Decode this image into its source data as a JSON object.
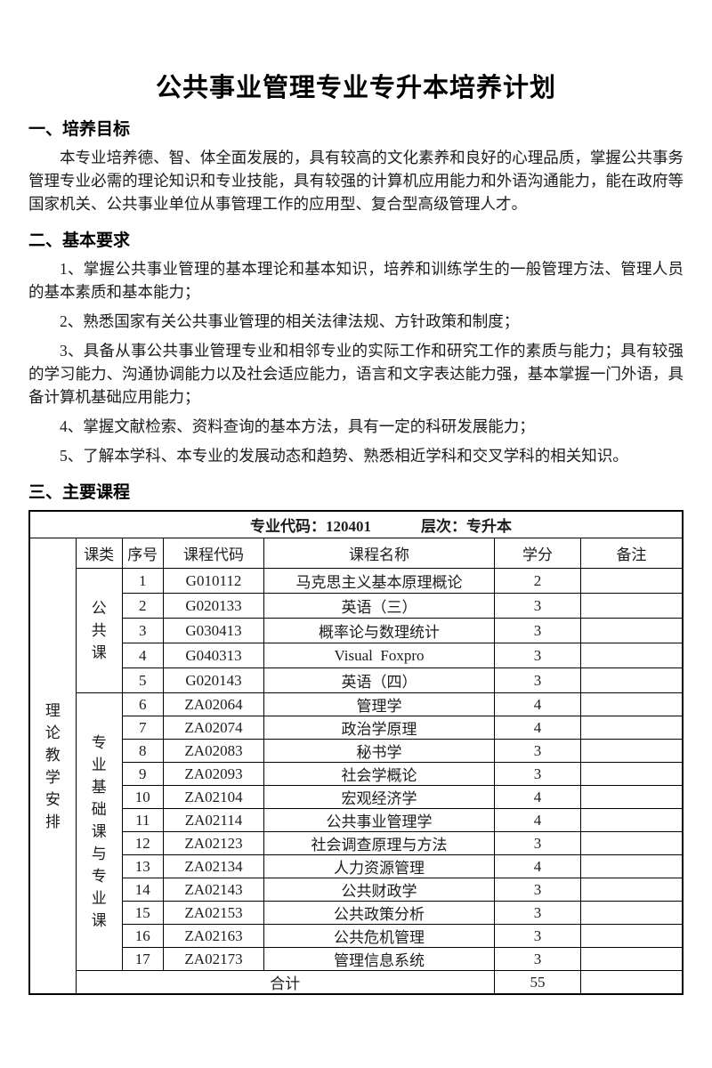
{
  "title": "公共事业管理专业专升本培养计划",
  "sections": [
    {
      "heading": "一、培养目标",
      "paragraphs": [
        "本专业培养德、智、体全面发展的，具有较高的文化素养和良好的心理品质，掌握公共事务管理专业必需的理论知识和专业技能，具有较强的计算机应用能力和外语沟通能力，能在政府等国家机关、公共事业单位从事管理工作的应用型、复合型高级管理人才。"
      ]
    },
    {
      "heading": "二、基本要求",
      "paragraphs": [
        "1、掌握公共事业管理的基本理论和基本知识，培养和训练学生的一般管理方法、管理人员的基本素质和基本能力；",
        "2、熟悉国家有关公共事业管理的相关法律法规、方针政策和制度；",
        "3、具备从事公共事业管理专业和相邻专业的实际工作和研究工作的素质与能力；具有较强的学习能力、沟通协调能力以及社会适应能力，语言和文字表达能力强，基本掌握一门外语，具备计算机基础应用能力；",
        "4、掌握文献检索、资料查询的基本方法，具有一定的科研发展能力；",
        "5、了解本学科、本专业的发展动态和趋势、熟悉相近学科和交叉学科的相关知识。"
      ]
    },
    {
      "heading": "三、主要课程",
      "paragraphs": []
    }
  ],
  "table": {
    "meta": {
      "code_label": "专业代码：",
      "code": "120401",
      "level_label": "层次：",
      "level": "专升本"
    },
    "left_label": "理论教学安排",
    "columns": [
      "课类",
      "序号",
      "课程代码",
      "课程名称",
      "学分",
      "备注"
    ],
    "groups": [
      {
        "label": "公共课",
        "rows": [
          {
            "no": "1",
            "code": "G010112",
            "name": "马克思主义基本原理概论",
            "credits": "2",
            "note": ""
          },
          {
            "no": "2",
            "code": "G020133",
            "name": "英语（三）",
            "credits": "3",
            "note": ""
          },
          {
            "no": "3",
            "code": "G030413",
            "name": "概率论与数理统计",
            "credits": "3",
            "note": ""
          },
          {
            "no": "4",
            "code": "G040313",
            "name": "Visual  Foxpro",
            "credits": "3",
            "note": ""
          },
          {
            "no": "5",
            "code": "G020143",
            "name": "英语（四）",
            "credits": "3",
            "note": ""
          }
        ]
      },
      {
        "label": "专业基础课与专业课",
        "rows": [
          {
            "no": "6",
            "code": "ZA02064",
            "name": "管理学",
            "credits": "4",
            "note": ""
          },
          {
            "no": "7",
            "code": "ZA02074",
            "name": "政治学原理",
            "credits": "4",
            "note": ""
          },
          {
            "no": "8",
            "code": "ZA02083",
            "name": "秘书学",
            "credits": "3",
            "note": ""
          },
          {
            "no": "9",
            "code": "ZA02093",
            "name": "社会学概论",
            "credits": "3",
            "note": ""
          },
          {
            "no": "10",
            "code": "ZA02104",
            "name": "宏观经济学",
            "credits": "4",
            "note": ""
          },
          {
            "no": "11",
            "code": "ZA02114",
            "name": "公共事业管理学",
            "credits": "4",
            "note": ""
          },
          {
            "no": "12",
            "code": "ZA02123",
            "name": "社会调查原理与方法",
            "credits": "3",
            "note": ""
          },
          {
            "no": "13",
            "code": "ZA02134",
            "name": "人力资源管理",
            "credits": "4",
            "note": ""
          },
          {
            "no": "14",
            "code": "ZA02143",
            "name": "公共财政学",
            "credits": "3",
            "note": ""
          },
          {
            "no": "15",
            "code": "ZA02153",
            "name": "公共政策分析",
            "credits": "3",
            "note": ""
          },
          {
            "no": "16",
            "code": "ZA02163",
            "name": "公共危机管理",
            "credits": "3",
            "note": ""
          },
          {
            "no": "17",
            "code": "ZA02173",
            "name": "管理信息系统",
            "credits": "3",
            "note": ""
          }
        ]
      }
    ],
    "total": {
      "label": "合计",
      "credits": "55",
      "note": ""
    }
  }
}
